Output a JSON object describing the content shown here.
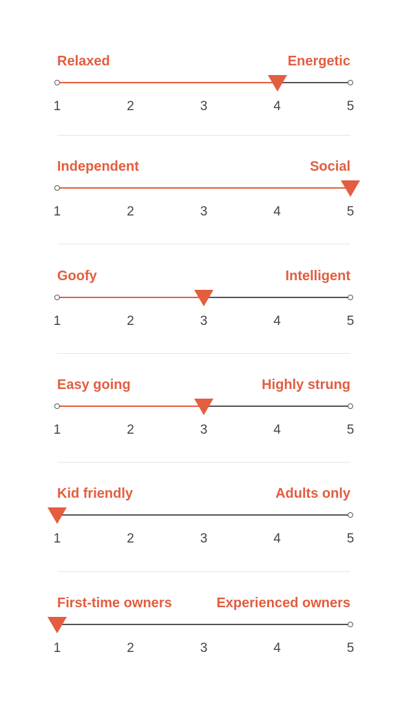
{
  "colors": {
    "accent": "#e35d3f",
    "track": "#555555",
    "text": "#444444",
    "divider": "#e6e6e6"
  },
  "scale_ticks": [
    "1",
    "2",
    "3",
    "4",
    "5"
  ],
  "scales": [
    {
      "left_label": "Relaxed",
      "right_label": "Energetic",
      "value": 4
    },
    {
      "left_label": "Independent",
      "right_label": "Social",
      "value": 5
    },
    {
      "left_label": "Goofy",
      "right_label": "Intelligent",
      "value": 3
    },
    {
      "left_label": "Easy going",
      "right_label": "Highly strung",
      "value": 3
    },
    {
      "left_label": "Kid friendly",
      "right_label": "Adults only",
      "value": 1
    },
    {
      "left_label": "First-time owners",
      "right_label": "Experienced owners",
      "value": 1
    }
  ]
}
